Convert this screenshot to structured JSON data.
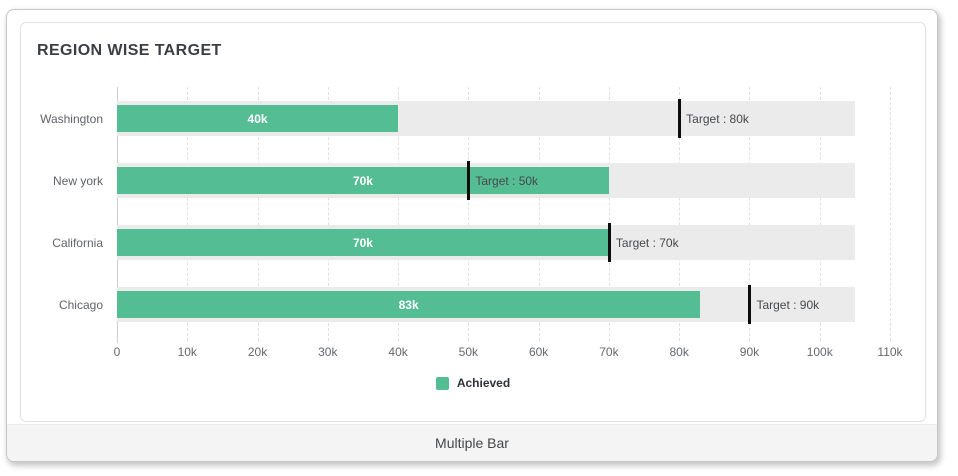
{
  "title": "REGION WISE TARGET",
  "footer": {
    "label": "Multiple Bar"
  },
  "legend": [
    {
      "label": "Achieved",
      "color": "#55bd94"
    }
  ],
  "colors": {
    "achieved_bar": "#55bd94",
    "track": "#ebebeb",
    "target_marker": "#0c0c0c",
    "footer_bg": "#f4f4f4",
    "title_text": "#3b3f45"
  },
  "chart_data": {
    "type": "bar",
    "orientation": "horizontal",
    "title": "REGION WISE TARGET",
    "categories": [
      "Washington",
      "New york",
      "California",
      "Chicago"
    ],
    "series": [
      {
        "name": "Achieved",
        "values": [
          40000,
          70000,
          70000,
          83000
        ]
      }
    ],
    "achieved_labels": [
      "40k",
      "70k",
      "70k",
      "83k"
    ],
    "targets": [
      80000,
      50000,
      70000,
      90000
    ],
    "target_labels": [
      "Target : 80k",
      "Target : 50k",
      "Target : 70k",
      "Target : 90k"
    ],
    "x_ticks": [
      "0",
      "10k",
      "20k",
      "30k",
      "40k",
      "50k",
      "60k",
      "70k",
      "80k",
      "90k",
      "100k",
      "110k"
    ],
    "xlim": [
      0,
      110000
    ],
    "track_max": 105000,
    "grid": "vertical-dashed",
    "legend_position": "bottom",
    "xlabel": "",
    "ylabel": ""
  }
}
